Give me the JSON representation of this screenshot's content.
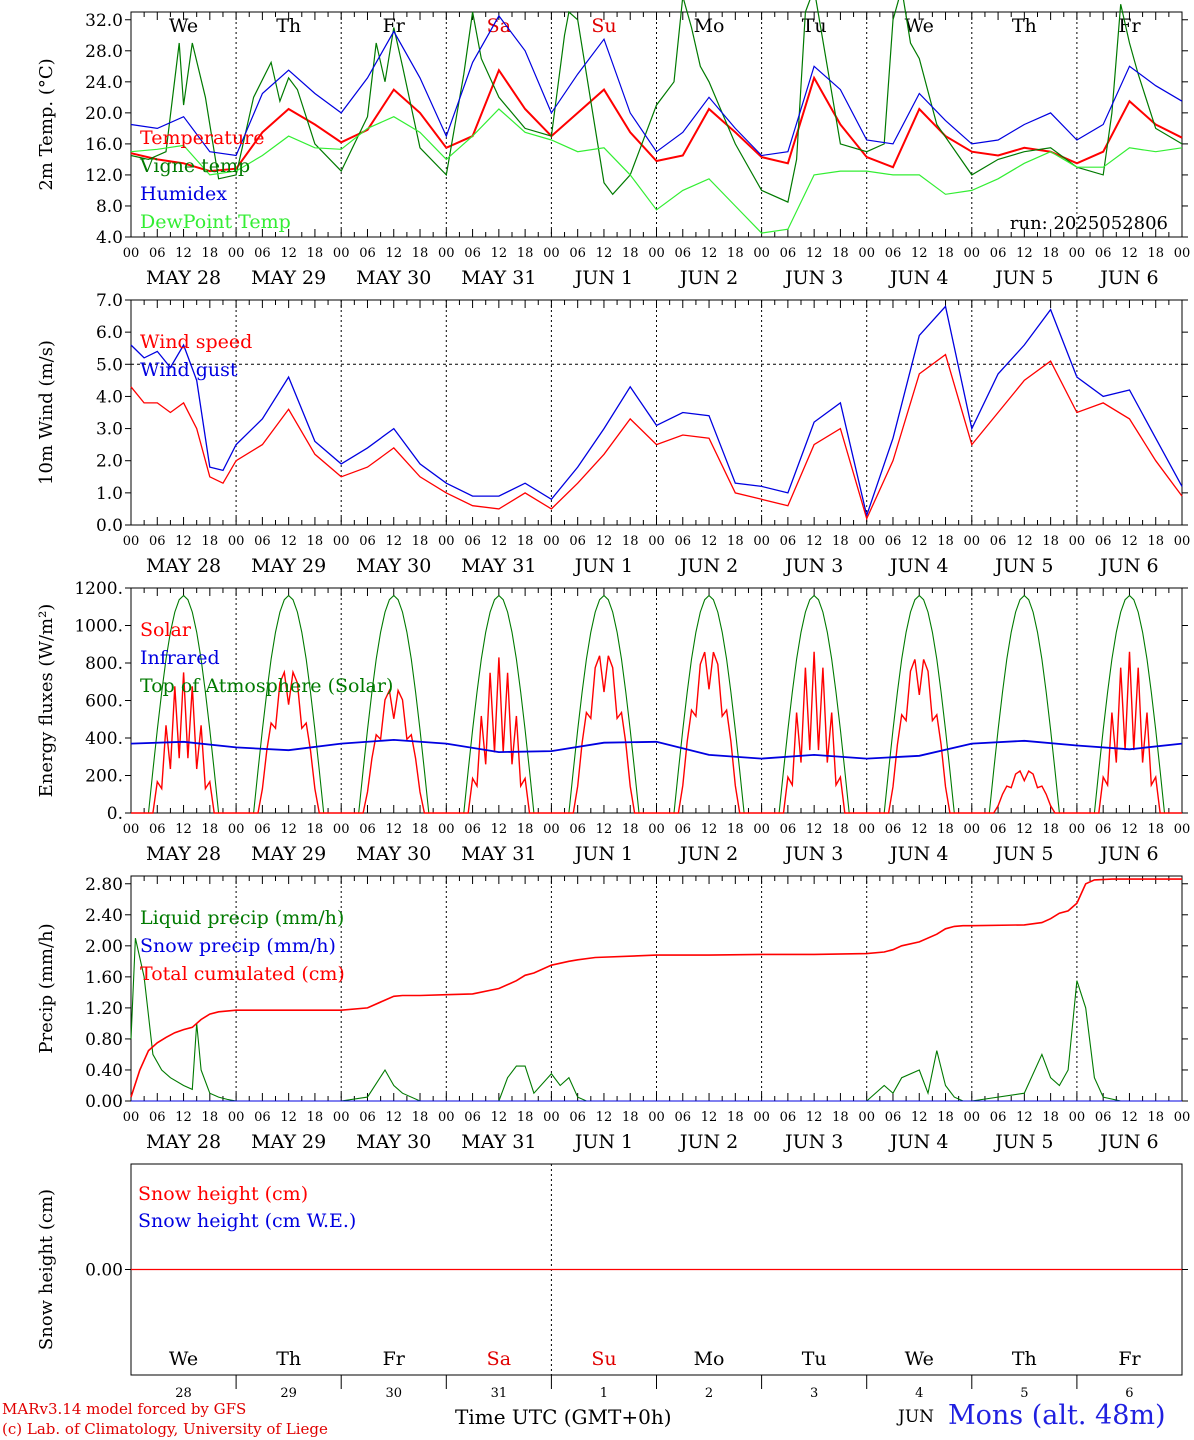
{
  "chart_data": [
    {
      "type": "line",
      "ylabel": "2m Temp. (°C)",
      "ylim": [
        4.0,
        33.0
      ],
      "yticks": [
        "4.0",
        "8.0",
        "12.0",
        "16.0",
        "20.0",
        "24.0",
        "28.0",
        "32.0"
      ],
      "x_range_hours": [
        0,
        240
      ],
      "day_names": [
        "We",
        "Th",
        "Fr",
        "Sa",
        "Su",
        "Mo",
        "Tu",
        "We",
        "Th",
        "Fr"
      ],
      "weekend_color": "#e00000",
      "run_label": "run: 2025052806",
      "grid": "vertical dotted day lines",
      "legend": "top-left",
      "series": [
        {
          "name": "Temperature",
          "color": "#ff0000",
          "x": [
            0,
            6,
            12,
            18,
            24,
            30,
            36,
            42,
            48,
            54,
            60,
            66,
            72,
            78,
            84,
            90,
            96,
            102,
            108,
            114,
            120,
            126,
            132,
            138,
            144,
            150,
            156,
            162,
            168,
            174,
            180,
            186,
            192,
            198,
            204,
            210,
            216,
            222,
            228,
            234,
            240
          ],
          "values": [
            14.8,
            14.0,
            13.5,
            12.5,
            12.8,
            17.5,
            20.5,
            18.5,
            16.2,
            17.8,
            23.0,
            20.0,
            15.5,
            17.0,
            25.5,
            20.5,
            17.0,
            20.0,
            23.0,
            17.5,
            13.8,
            14.5,
            20.5,
            17.5,
            14.3,
            13.5,
            24.5,
            18.5,
            14.3,
            13.0,
            20.5,
            17.0,
            15.0,
            14.5,
            15.5,
            15.0,
            13.5,
            15.0,
            21.5,
            18.5,
            16.8
          ]
        },
        {
          "name": "Vigne temp",
          "color": "#007a00",
          "x": [
            0,
            4,
            8,
            11,
            12,
            14,
            17,
            20,
            24,
            28,
            32,
            34,
            36,
            38,
            42,
            48,
            54,
            56,
            58,
            60,
            62,
            66,
            72,
            76,
            78,
            80,
            84,
            90,
            96,
            99,
            100,
            102,
            106,
            108,
            110,
            114,
            120,
            124,
            126,
            128,
            130,
            132,
            138,
            144,
            150,
            152,
            154,
            156,
            162,
            168,
            172,
            174,
            176,
            178,
            180,
            184,
            192,
            198,
            204,
            210,
            216,
            222,
            224,
            226,
            228,
            230,
            234,
            240
          ],
          "values": [
            14.5,
            14.0,
            15.0,
            29.0,
            21.0,
            29.0,
            22.0,
            11.5,
            12.0,
            22.0,
            26.5,
            21.5,
            24.5,
            23.0,
            16.0,
            12.5,
            19.5,
            29.0,
            24.0,
            31.0,
            26.0,
            15.5,
            12.0,
            25.0,
            33.0,
            27.0,
            22.0,
            18.0,
            17.0,
            30.0,
            33.0,
            32.0,
            18.0,
            11.0,
            9.5,
            12.0,
            21.0,
            24.0,
            35.0,
            31.0,
            26.0,
            24.0,
            16.0,
            10.0,
            8.5,
            14.0,
            33.0,
            36.0,
            16.0,
            15.0,
            16.0,
            32.0,
            36.0,
            29.0,
            27.0,
            18.5,
            12.0,
            14.0,
            15.0,
            15.5,
            13.0,
            12.0,
            20.0,
            34.0,
            29.0,
            25.0,
            18.0,
            16.0
          ]
        },
        {
          "name": "Humidex",
          "color": "#0000e0",
          "x": [
            0,
            6,
            12,
            18,
            24,
            30,
            36,
            42,
            48,
            54,
            60,
            66,
            72,
            78,
            84,
            90,
            96,
            102,
            108,
            114,
            120,
            126,
            132,
            138,
            144,
            150,
            156,
            162,
            168,
            174,
            180,
            186,
            192,
            198,
            204,
            210,
            216,
            222,
            228,
            234,
            240
          ],
          "values": [
            18.5,
            18.0,
            19.5,
            15.0,
            14.5,
            22.5,
            25.5,
            22.5,
            20.0,
            24.5,
            30.5,
            24.5,
            17.0,
            26.5,
            32.5,
            28.0,
            20.0,
            25.0,
            29.5,
            20.0,
            15.0,
            17.5,
            22.0,
            18.0,
            14.5,
            15.0,
            26.0,
            23.0,
            16.5,
            16.0,
            22.5,
            19.0,
            16.0,
            16.5,
            18.5,
            20.0,
            16.5,
            18.5,
            26.0,
            23.5,
            21.5
          ]
        },
        {
          "name": "DewPoint Temp",
          "color": "#33ee33",
          "x": [
            0,
            6,
            12,
            18,
            24,
            30,
            36,
            42,
            48,
            54,
            60,
            66,
            72,
            78,
            84,
            90,
            96,
            102,
            108,
            114,
            120,
            126,
            132,
            138,
            144,
            150,
            156,
            162,
            168,
            174,
            180,
            186,
            192,
            198,
            204,
            210,
            216,
            222,
            228,
            234,
            240
          ],
          "values": [
            15.0,
            15.3,
            15.8,
            12.0,
            12.5,
            14.5,
            17.0,
            15.5,
            15.3,
            18.0,
            19.5,
            17.5,
            14.0,
            17.0,
            20.5,
            17.5,
            16.5,
            15.0,
            15.5,
            12.0,
            7.5,
            10.0,
            11.5,
            8.0,
            4.5,
            5.0,
            12.0,
            12.5,
            12.5,
            12.0,
            12.0,
            9.5,
            10.0,
            11.5,
            13.5,
            15.0,
            13.0,
            13.0,
            15.5,
            15.0,
            15.5
          ]
        }
      ]
    },
    {
      "type": "line",
      "ylabel": "10m Wind (m/s)",
      "ylim": [
        0.0,
        7.0
      ],
      "yticks": [
        "0.0",
        "1.0",
        "2.0",
        "3.0",
        "4.0",
        "5.0",
        "6.0",
        "7.0"
      ],
      "reference_line": 5.0,
      "legend": "top-left",
      "series": [
        {
          "name": "Wind speed",
          "color": "#ff0000",
          "x": [
            0,
            3,
            6,
            9,
            12,
            15,
            18,
            21,
            24,
            30,
            36,
            42,
            48,
            54,
            60,
            66,
            72,
            78,
            84,
            90,
            96,
            102,
            108,
            114,
            120,
            126,
            132,
            138,
            144,
            150,
            156,
            162,
            168,
            174,
            180,
            186,
            192,
            198,
            204,
            210,
            216,
            222,
            228,
            234,
            240
          ],
          "values": [
            4.3,
            3.8,
            3.8,
            3.5,
            3.8,
            3.0,
            1.5,
            1.3,
            2.0,
            2.5,
            3.6,
            2.2,
            1.5,
            1.8,
            2.4,
            1.5,
            1.0,
            0.6,
            0.5,
            1.0,
            0.5,
            1.3,
            2.2,
            3.3,
            2.5,
            2.8,
            2.7,
            1.0,
            0.8,
            0.6,
            2.5,
            3.0,
            0.2,
            2.0,
            4.7,
            5.3,
            2.5,
            3.5,
            4.5,
            5.1,
            3.5,
            3.8,
            3.3,
            2.0,
            0.9
          ]
        },
        {
          "name": "Wind gust",
          "color": "#0000e0",
          "x": [
            0,
            3,
            6,
            9,
            12,
            15,
            18,
            21,
            24,
            30,
            36,
            42,
            48,
            54,
            60,
            66,
            72,
            78,
            84,
            90,
            96,
            102,
            108,
            114,
            120,
            126,
            132,
            138,
            144,
            150,
            156,
            162,
            168,
            174,
            180,
            186,
            192,
            198,
            204,
            210,
            216,
            222,
            228,
            234,
            240
          ],
          "values": [
            5.6,
            5.2,
            5.4,
            4.9,
            5.6,
            4.5,
            1.8,
            1.7,
            2.5,
            3.3,
            4.6,
            2.6,
            1.9,
            2.4,
            3.0,
            1.9,
            1.3,
            0.9,
            0.9,
            1.3,
            0.8,
            1.8,
            3.0,
            4.3,
            3.1,
            3.5,
            3.4,
            1.3,
            1.2,
            1.0,
            3.2,
            3.8,
            0.3,
            2.7,
            5.9,
            6.8,
            3.0,
            4.7,
            5.6,
            6.7,
            4.6,
            4.0,
            4.2,
            2.7,
            1.2
          ]
        }
      ]
    },
    {
      "type": "line",
      "ylabel": "Energy fluxes (W/m²)",
      "ylim": [
        0,
        1200
      ],
      "yticks": [
        "0.",
        "200.",
        "400.",
        "600.",
        "800.",
        "1000.",
        "1200."
      ],
      "legend": "top-left",
      "series": [
        {
          "name": "Solar",
          "color": "#ff0000",
          "peaks": [
            750,
            770,
            670,
            830,
            860,
            880,
            860,
            840,
            230,
            860
          ]
        },
        {
          "name": "Infrared",
          "color": "#0000e0",
          "x": [
            0,
            24,
            48,
            72,
            96,
            120,
            144,
            168,
            192,
            216,
            240
          ],
          "values": [
            370,
            350,
            370,
            370,
            330,
            380,
            290,
            290,
            370,
            360,
            370
          ]
        },
        {
          "name": "Top of Atmosphere (Solar)",
          "color": "#007a00",
          "peak": 1160,
          "sunrise_hour": 4,
          "sunset_hour": 20
        }
      ]
    },
    {
      "type": "line",
      "ylabel": "Precip (mm/h)",
      "ylim": [
        0.0,
        2.9
      ],
      "yticks": [
        "0.00",
        "0.40",
        "0.80",
        "1.20",
        "1.60",
        "2.00",
        "2.40",
        "2.80"
      ],
      "legend": "top-left",
      "series": [
        {
          "name": "Liquid precip (mm/h)",
          "color": "#007a00",
          "x": [
            0,
            1,
            3,
            5,
            7,
            9,
            12,
            14,
            15,
            16,
            18,
            20,
            22,
            24,
            48,
            54,
            58,
            60,
            62,
            66,
            72,
            84,
            86,
            88,
            90,
            92,
            96,
            98,
            100,
            102,
            104,
            120,
            144,
            168,
            172,
            174,
            176,
            180,
            182,
            184,
            186,
            188,
            190,
            192,
            204,
            208,
            210,
            212,
            214,
            216,
            218,
            220,
            222,
            226,
            240
          ],
          "values": [
            0.8,
            2.1,
            1.6,
            0.6,
            0.4,
            0.3,
            0.2,
            0.15,
            1.0,
            0.4,
            0.1,
            0.05,
            0.02,
            0.0,
            0.0,
            0.05,
            0.4,
            0.2,
            0.1,
            0.0,
            0.0,
            0.0,
            0.3,
            0.45,
            0.45,
            0.1,
            0.35,
            0.2,
            0.3,
            0.05,
            0.0,
            0.0,
            0.0,
            0.0,
            0.2,
            0.1,
            0.3,
            0.4,
            0.1,
            0.65,
            0.2,
            0.05,
            0.0,
            0.0,
            0.1,
            0.6,
            0.3,
            0.2,
            0.4,
            1.55,
            1.2,
            0.3,
            0.05,
            0.0,
            0.0
          ]
        },
        {
          "name": "Snow precip (mm/h)",
          "color": "#0000e0",
          "values": [
            0
          ]
        },
        {
          "name": "Total cumulated (cm)",
          "color": "#ff0000",
          "x": [
            0,
            2,
            4,
            6,
            8,
            10,
            12,
            14,
            16,
            18,
            20,
            24,
            36,
            48,
            54,
            58,
            60,
            62,
            66,
            72,
            78,
            84,
            88,
            90,
            92,
            96,
            100,
            102,
            106,
            120,
            132,
            144,
            156,
            168,
            172,
            174,
            176,
            180,
            184,
            186,
            188,
            190,
            192,
            204,
            208,
            210,
            212,
            214,
            216,
            218,
            220,
            224,
            240
          ],
          "values": [
            0.05,
            0.4,
            0.65,
            0.75,
            0.82,
            0.88,
            0.92,
            0.95,
            1.05,
            1.12,
            1.15,
            1.17,
            1.17,
            1.17,
            1.2,
            1.3,
            1.35,
            1.36,
            1.36,
            1.37,
            1.38,
            1.45,
            1.55,
            1.62,
            1.65,
            1.75,
            1.8,
            1.82,
            1.85,
            1.88,
            1.88,
            1.89,
            1.89,
            1.9,
            1.92,
            1.95,
            2.0,
            2.05,
            2.15,
            2.22,
            2.25,
            2.26,
            2.26,
            2.27,
            2.3,
            2.35,
            2.42,
            2.45,
            2.55,
            2.8,
            2.85,
            2.86,
            2.86
          ]
        }
      ]
    },
    {
      "type": "line",
      "ylabel": "Snow height (cm)",
      "ylim": [
        -1,
        1
      ],
      "yticks": [
        "0.00"
      ],
      "legend": "top-left",
      "series": [
        {
          "name": "Snow height (cm)",
          "color": "#ff0000",
          "values": [
            0.0
          ]
        },
        {
          "name": "Snow height (cm W.E.)",
          "color": "#0000e0",
          "values": [
            0.0
          ]
        }
      ]
    }
  ],
  "date_labels": [
    "MAY 28",
    "MAY 29",
    "MAY 30",
    "MAY 31",
    "JUN  1",
    "JUN  2",
    "JUN  3",
    "JUN  4",
    "JUN  5",
    "JUN  6"
  ],
  "hour_labels": [
    "00",
    "06",
    "12",
    "18"
  ],
  "hour_end_label": "00",
  "bottom_day_numbers": [
    "28",
    "29",
    "30",
    "31",
    "1",
    "2",
    "3",
    "4",
    "5",
    "6"
  ],
  "bottom_month_label": "JUN",
  "xlabel": "Time UTC (GMT+0h)",
  "credit_line1": "MARv3.14 model forced by GFS",
  "credit_line2": "(c) Lab. of Climatology, University of Liege",
  "station": "Mons (alt. 48m)",
  "colors": {
    "red": "#e00000",
    "blue": "#2020e0",
    "green": "#007a00",
    "lightgreen": "#33ee33",
    "axis": "#000000"
  }
}
